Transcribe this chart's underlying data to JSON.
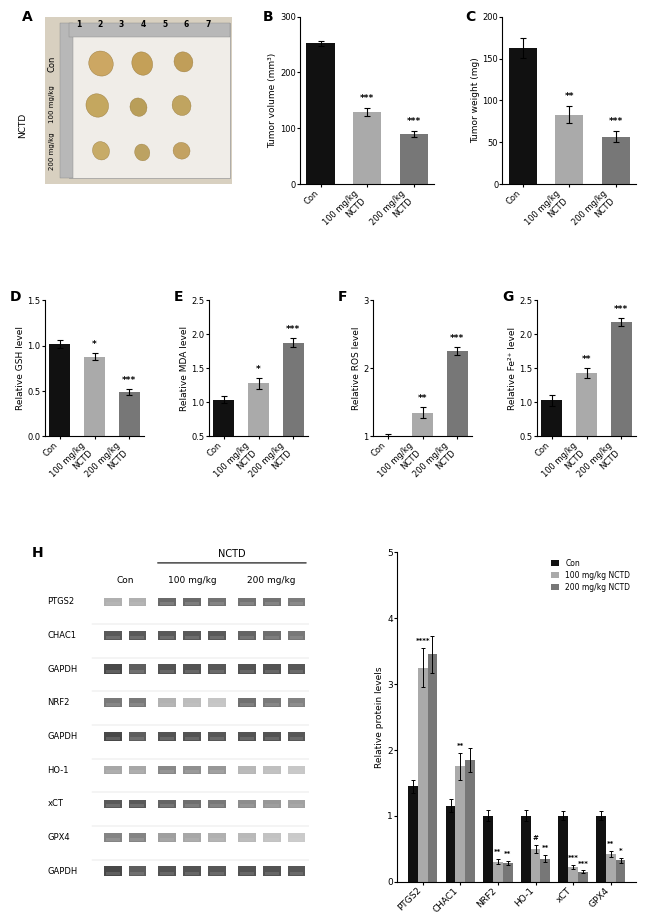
{
  "panel_B": {
    "title": "B",
    "ylabel": "Tumor volume (mm³)",
    "ylim": [
      0,
      300
    ],
    "yticks": [
      0,
      100,
      200,
      300
    ],
    "categories": [
      "Con",
      "100 mg/kg\nNCTD",
      "200 mg/kg\nNCTD"
    ],
    "values": [
      252,
      130,
      90
    ],
    "errors": [
      4,
      7,
      6
    ],
    "colors": [
      "#111111",
      "#aaaaaa",
      "#777777"
    ],
    "sig": [
      "",
      "***",
      "***"
    ]
  },
  "panel_C": {
    "title": "C",
    "ylabel": "Tumor weight (mg)",
    "ylim": [
      0,
      200
    ],
    "yticks": [
      0,
      50,
      100,
      150,
      200
    ],
    "categories": [
      "Con",
      "100 mg/kg\nNCTD",
      "200 mg/kg\nNCTD"
    ],
    "values": [
      163,
      83,
      57
    ],
    "errors": [
      12,
      10,
      7
    ],
    "colors": [
      "#111111",
      "#aaaaaa",
      "#777777"
    ],
    "sig": [
      "",
      "**",
      "***"
    ]
  },
  "panel_D": {
    "title": "D",
    "ylabel": "Relative GSH level",
    "ylim": [
      0.0,
      1.5
    ],
    "yticks": [
      0.0,
      0.5,
      1.0,
      1.5
    ],
    "categories": [
      "Con",
      "100 mg/kg\nNCTD",
      "200 mg/kg\nNCTD"
    ],
    "values": [
      1.02,
      0.88,
      0.49
    ],
    "errors": [
      0.04,
      0.04,
      0.03
    ],
    "colors": [
      "#111111",
      "#aaaaaa",
      "#777777"
    ],
    "sig": [
      "",
      "*",
      "***"
    ]
  },
  "panel_E": {
    "title": "E",
    "ylabel": "Relative MDA level",
    "ylim": [
      0.5,
      2.5
    ],
    "yticks": [
      0.5,
      1.0,
      1.5,
      2.0,
      2.5
    ],
    "categories": [
      "Con",
      "100 mg/kg\nNCTD",
      "200 mg/kg\nNCTD"
    ],
    "values": [
      1.04,
      1.28,
      1.88
    ],
    "errors": [
      0.05,
      0.08,
      0.07
    ],
    "colors": [
      "#111111",
      "#aaaaaa",
      "#777777"
    ],
    "sig": [
      "",
      "*",
      "***"
    ]
  },
  "panel_F": {
    "title": "F",
    "ylabel": "Relative ROS level",
    "ylim": [
      1,
      3
    ],
    "yticks": [
      1,
      2,
      3
    ],
    "categories": [
      "Con",
      "100 mg/kg\nNCTD",
      "200 mg/kg\nNCTD"
    ],
    "values": [
      1.0,
      1.35,
      2.25
    ],
    "errors": [
      0.04,
      0.08,
      0.06
    ],
    "colors": [
      "#111111",
      "#aaaaaa",
      "#777777"
    ],
    "sig": [
      "",
      "**",
      "***"
    ]
  },
  "panel_G": {
    "title": "G",
    "ylabel": "Relative Fe²⁺ level",
    "ylim": [
      0.5,
      2.5
    ],
    "yticks": [
      0.5,
      1.0,
      1.5,
      2.0,
      2.5
    ],
    "categories": [
      "Con",
      "100 mg/kg\nNCTD",
      "200 mg/kg\nNCTD"
    ],
    "values": [
      1.03,
      1.43,
      2.18
    ],
    "errors": [
      0.08,
      0.07,
      0.06
    ],
    "colors": [
      "#111111",
      "#aaaaaa",
      "#777777"
    ],
    "sig": [
      "",
      "**",
      "***"
    ]
  },
  "panel_H_bar": {
    "categories": [
      "PTGS2",
      "CHAC1",
      "NRF2",
      "HO-1",
      "xCT",
      "GPX4"
    ],
    "con_values": [
      1.45,
      1.15,
      1.0,
      1.0,
      1.0,
      1.0
    ],
    "con_errors": [
      0.1,
      0.1,
      0.08,
      0.08,
      0.07,
      0.07
    ],
    "mid_values": [
      3.25,
      1.75,
      0.3,
      0.5,
      0.22,
      0.42
    ],
    "mid_errors": [
      0.3,
      0.2,
      0.04,
      0.06,
      0.03,
      0.05
    ],
    "high_values": [
      3.45,
      1.85,
      0.28,
      0.35,
      0.15,
      0.32
    ],
    "high_errors": [
      0.28,
      0.18,
      0.03,
      0.05,
      0.02,
      0.04
    ],
    "con_sig": [
      "",
      "",
      "",
      "",
      "",
      ""
    ],
    "mid_sig": [
      "****",
      "**",
      "**",
      "#",
      "***",
      "**"
    ],
    "high_sig": [
      "",
      "",
      "**",
      "**",
      "***",
      "*"
    ],
    "ylim": [
      0,
      5
    ],
    "yticks": [
      0,
      1,
      2,
      3,
      4,
      5
    ],
    "ylabel": "Relative protein levels",
    "colors": [
      "#111111",
      "#aaaaaa",
      "#777777"
    ],
    "legend": [
      "Con",
      "100 mg/kg NCTD",
      "200 mg/kg NCTD"
    ]
  },
  "wb_proteins": [
    "PTGS2",
    "CHAC1",
    "GAPDH",
    "NRF2",
    "GAPDH",
    "HO-1",
    "xCT",
    "GPX4",
    "GAPDH"
  ],
  "panel_labels_top": [
    "A",
    "B",
    "C"
  ],
  "panel_labels_mid": [
    "D",
    "E",
    "F",
    "G"
  ],
  "bg_color": "#ffffff",
  "wb_bg": "#f0f0f0"
}
